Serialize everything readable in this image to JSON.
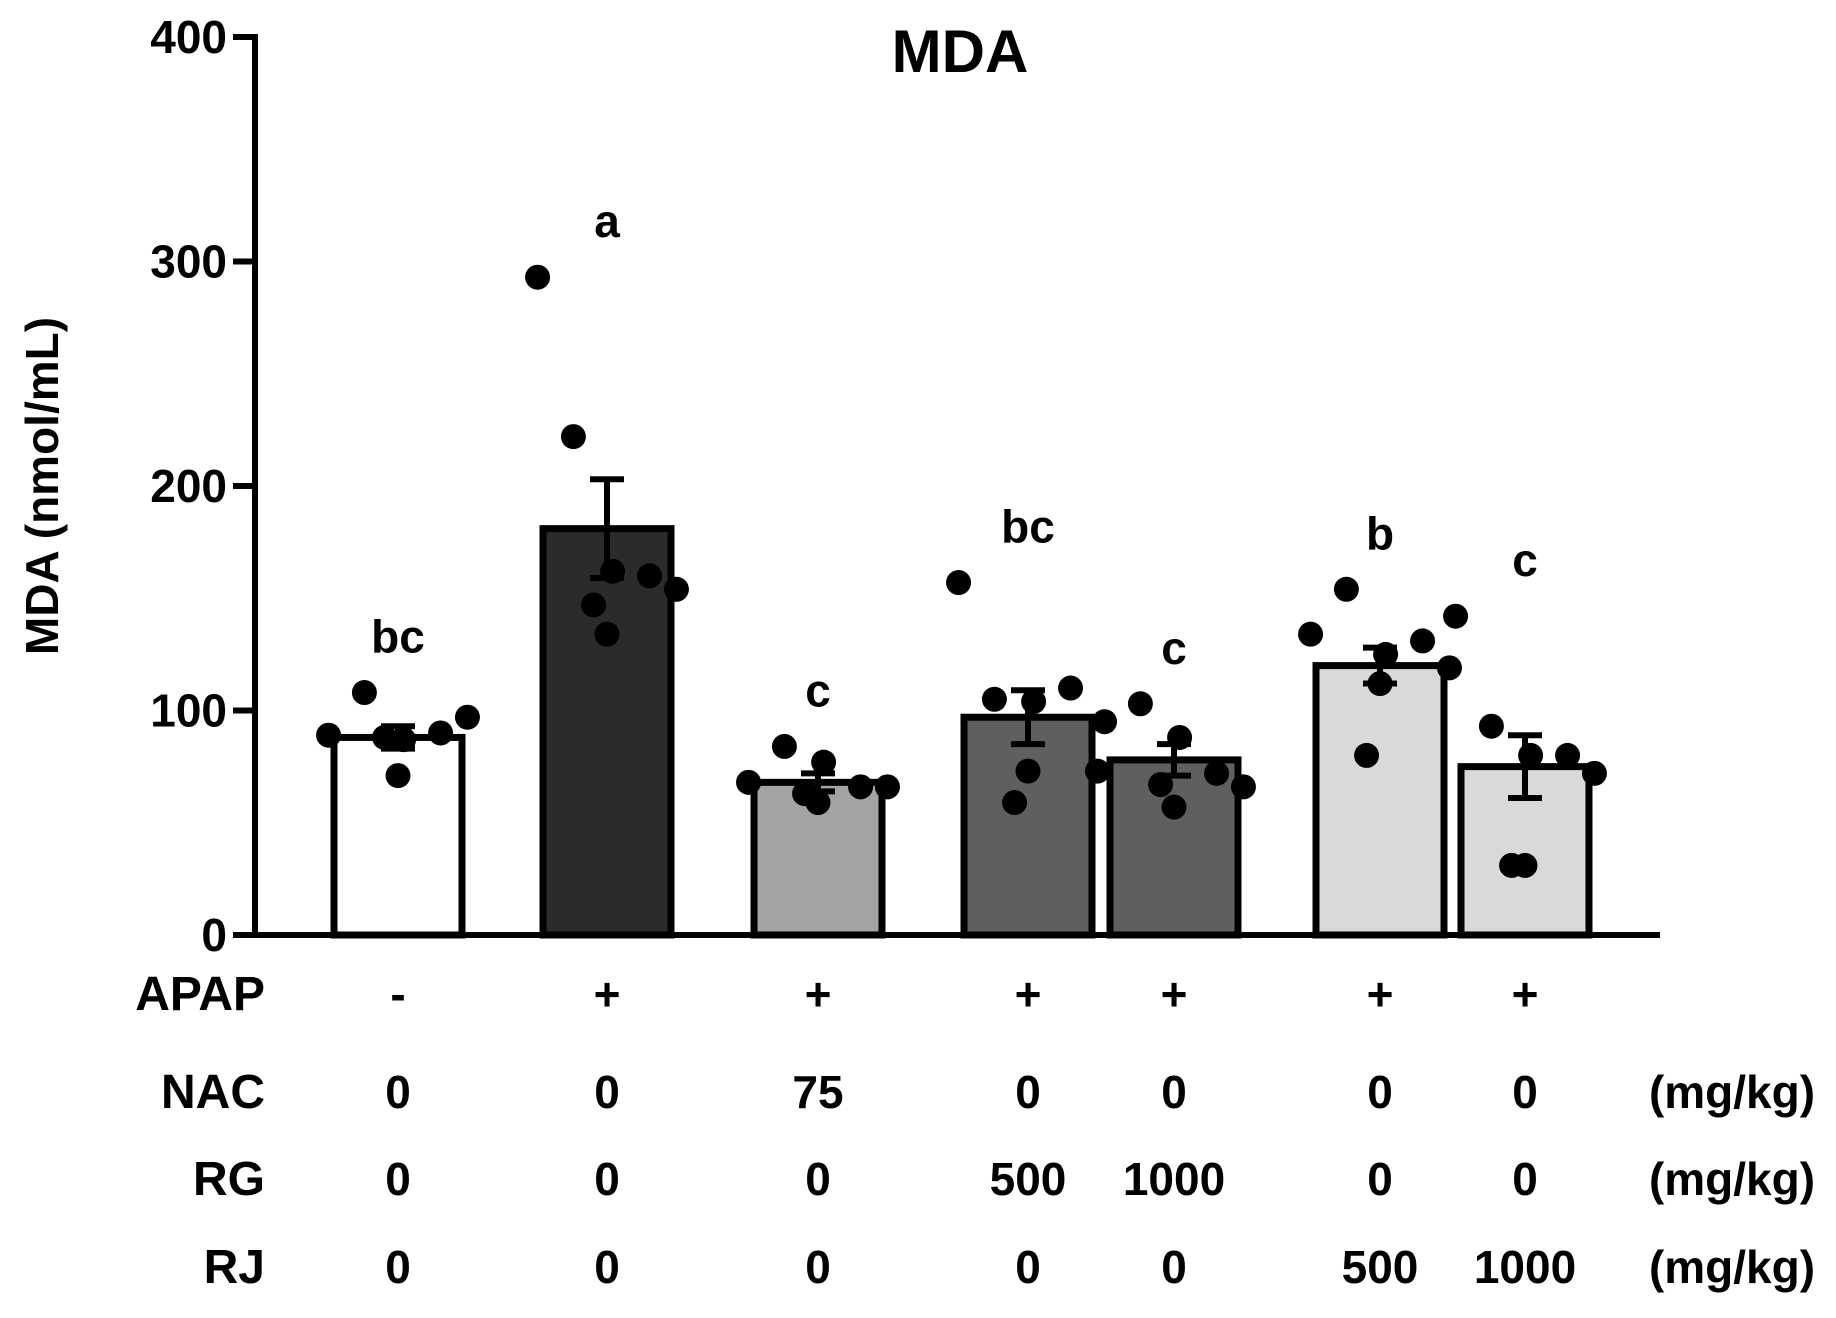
{
  "chart_data": {
    "type": "bar",
    "title": "MDA",
    "ylabel": "MDA (nmol/mL)",
    "xlabel": "",
    "ylim": [
      0,
      400
    ],
    "yticks": [
      0,
      100,
      200,
      300,
      400
    ],
    "ytick_labels": [
      "0",
      "100",
      "200",
      "300",
      "400"
    ],
    "colors": [
      "#ffffff",
      "#2b2b2b",
      "#a3a3a5",
      "#5f5f5f",
      "#5f5f5f",
      "#d9d9d9",
      "#d9d9d9"
    ],
    "bars": [
      {
        "mean": 88,
        "sem": 5,
        "letter": "bc",
        "points": [
          89,
          108,
          87,
          90,
          97,
          71,
          88
        ]
      },
      {
        "mean": 181,
        "sem": 22,
        "letter": "a",
        "points": [
          293,
          222,
          162,
          160,
          154,
          134,
          147
        ]
      },
      {
        "mean": 68,
        "sem": 4,
        "letter": "c",
        "points": [
          68,
          84,
          77,
          66,
          66,
          59,
          63
        ]
      },
      {
        "mean": 97,
        "sem": 12,
        "letter": "bc",
        "points": [
          157,
          105,
          104,
          110,
          73,
          73,
          59
        ]
      },
      {
        "mean": 78,
        "sem": 7,
        "letter": "c",
        "points": [
          95,
          103,
          88,
          72,
          66,
          57,
          67
        ]
      },
      {
        "mean": 120,
        "sem": 8,
        "letter": "b",
        "points": [
          134,
          154,
          125,
          131,
          119,
          112,
          80
        ]
      },
      {
        "mean": 75,
        "sem": 14,
        "letter": "c",
        "points": [
          142,
          93,
          80,
          80,
          72,
          31,
          31
        ]
      }
    ]
  },
  "table": {
    "rows": [
      {
        "label": "APAP",
        "values": [
          "-",
          "+",
          "+",
          "+",
          "+",
          "+",
          "+"
        ],
        "unit": ""
      },
      {
        "label": "NAC",
        "values": [
          "0",
          "0",
          "75",
          "0",
          "0",
          "0",
          "0"
        ],
        "unit": "(mg/kg)"
      },
      {
        "label": "RG",
        "values": [
          "0",
          "0",
          "0",
          "500",
          "1000",
          "0",
          "0"
        ],
        "unit": "(mg/kg)"
      },
      {
        "label": "RJ",
        "values": [
          "0",
          "0",
          "0",
          "0",
          "0",
          "500",
          "1000"
        ],
        "unit": "(mg/kg)"
      }
    ]
  }
}
